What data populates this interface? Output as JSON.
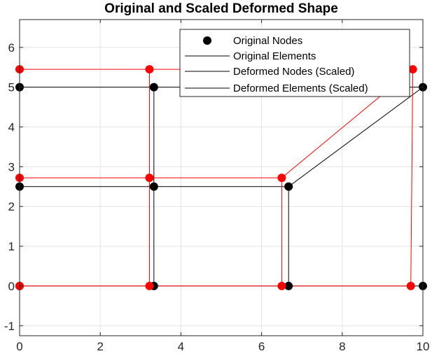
{
  "chart_data": {
    "type": "scatter",
    "title": "Original and Scaled Deformed Shape",
    "xlabel": "",
    "ylabel": "",
    "xlim": [
      0,
      10
    ],
    "ylim": [
      -1.25,
      6.7
    ],
    "x_ticks": [
      "0",
      "2",
      "4",
      "6",
      "8",
      "10"
    ],
    "y_ticks": [
      "-1",
      "0",
      "1",
      "2",
      "3",
      "4",
      "5",
      "6"
    ],
    "grid": true,
    "legend_position": "top-right",
    "legend": [
      "Original Nodes",
      "Original Elements",
      "Deformed Nodes (Scaled)",
      "Deformed Elements (Scaled)"
    ],
    "series": [
      {
        "name": "Original Nodes",
        "color": "#000000",
        "points": [
          [
            0,
            0
          ],
          [
            3.33,
            0
          ],
          [
            6.67,
            0
          ],
          [
            10,
            0
          ],
          [
            0,
            2.5
          ],
          [
            3.33,
            2.5
          ],
          [
            6.67,
            2.5
          ],
          [
            0,
            5
          ],
          [
            3.33,
            5
          ],
          [
            10,
            5
          ]
        ]
      },
      {
        "name": "Original Elements",
        "color": "#000000",
        "segments": [
          [
            [
              0,
              0
            ],
            [
              3.33,
              0
            ]
          ],
          [
            [
              3.33,
              0
            ],
            [
              6.67,
              0
            ]
          ],
          [
            [
              6.67,
              0
            ],
            [
              10,
              0
            ]
          ],
          [
            [
              0,
              2.5
            ],
            [
              3.33,
              2.5
            ]
          ],
          [
            [
              3.33,
              2.5
            ],
            [
              6.67,
              2.5
            ]
          ],
          [
            [
              0,
              5
            ],
            [
              3.33,
              5
            ]
          ],
          [
            [
              3.33,
              5
            ],
            [
              10,
              5
            ]
          ],
          [
            [
              0,
              0
            ],
            [
              0,
              2.5
            ]
          ],
          [
            [
              0,
              2.5
            ],
            [
              0,
              5
            ]
          ],
          [
            [
              3.33,
              0
            ],
            [
              3.33,
              2.5
            ]
          ],
          [
            [
              3.33,
              2.5
            ],
            [
              3.33,
              5
            ]
          ],
          [
            [
              6.67,
              0
            ],
            [
              6.67,
              2.5
            ]
          ],
          [
            [
              6.67,
              2.5
            ],
            [
              10,
              5
            ]
          ],
          [
            [
              10,
              0
            ],
            [
              10,
              5
            ]
          ]
        ]
      },
      {
        "name": "Deformed Nodes (Scaled)",
        "color": "#ff0000",
        "points": [
          [
            0,
            0
          ],
          [
            3.22,
            0
          ],
          [
            6.5,
            0
          ],
          [
            9.7,
            0
          ],
          [
            0,
            2.72
          ],
          [
            3.22,
            2.72
          ],
          [
            6.5,
            2.72
          ],
          [
            0,
            5.45
          ],
          [
            3.22,
            5.45
          ],
          [
            9.75,
            5.45
          ]
        ]
      },
      {
        "name": "Deformed Elements (Scaled)",
        "color": "#ff0000",
        "segments": [
          [
            [
              0,
              0
            ],
            [
              3.22,
              0
            ]
          ],
          [
            [
              3.22,
              0
            ],
            [
              6.5,
              0
            ]
          ],
          [
            [
              6.5,
              0
            ],
            [
              9.7,
              0
            ]
          ],
          [
            [
              0,
              2.72
            ],
            [
              3.22,
              2.72
            ]
          ],
          [
            [
              3.22,
              2.72
            ],
            [
              6.5,
              2.72
            ]
          ],
          [
            [
              0,
              5.45
            ],
            [
              3.22,
              5.45
            ]
          ],
          [
            [
              3.22,
              5.45
            ],
            [
              9.75,
              5.45
            ]
          ],
          [
            [
              0,
              0
            ],
            [
              0,
              2.72
            ]
          ],
          [
            [
              0,
              2.72
            ],
            [
              0,
              5.45
            ]
          ],
          [
            [
              3.22,
              0
            ],
            [
              3.22,
              2.72
            ]
          ],
          [
            [
              3.22,
              2.72
            ],
            [
              3.22,
              5.45
            ]
          ],
          [
            [
              6.5,
              0
            ],
            [
              6.5,
              2.72
            ]
          ],
          [
            [
              6.5,
              2.72
            ],
            [
              9.75,
              5.45
            ]
          ],
          [
            [
              9.7,
              0
            ],
            [
              9.75,
              5.45
            ]
          ]
        ]
      }
    ]
  }
}
